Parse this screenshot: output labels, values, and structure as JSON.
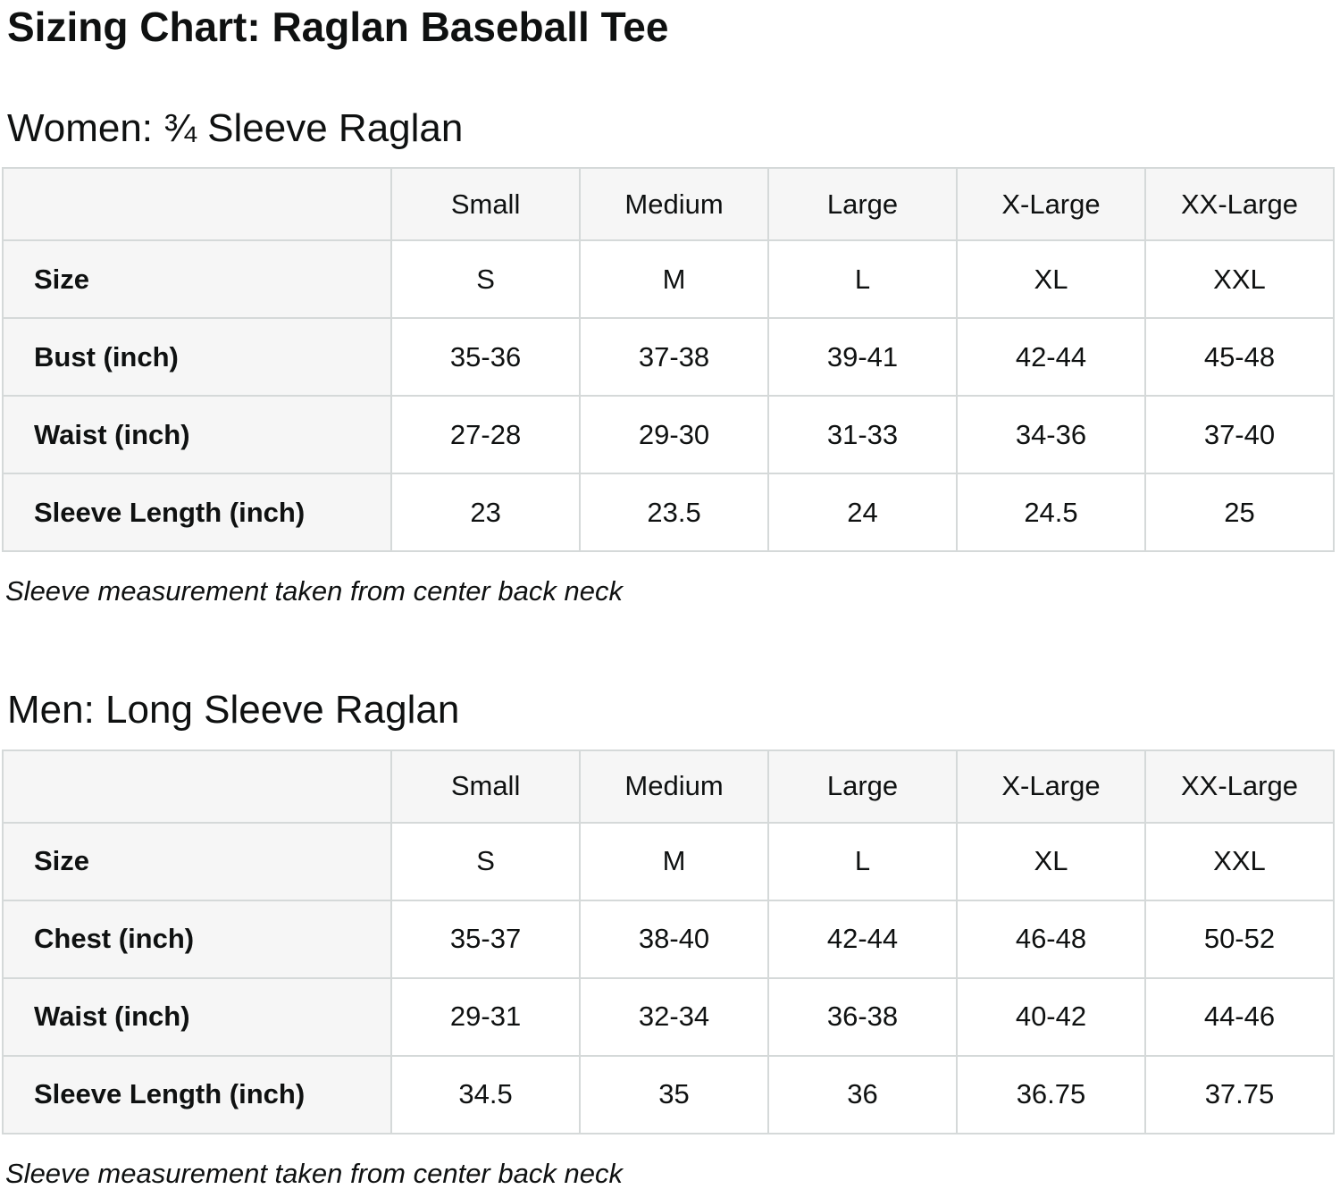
{
  "page": {
    "title": "Sizing Chart: Raglan Baseball Tee"
  },
  "sections": [
    {
      "heading": "Women: ¾ Sleeve Raglan",
      "note": "Sleeve measurement taken from center back neck",
      "table": {
        "column_headers": [
          "Small",
          "Medium",
          "Large",
          "X-Large",
          "XX-Large"
        ],
        "rows": [
          {
            "label": "Size",
            "values": [
              "S",
              "M",
              "L",
              "XL",
              "XXL"
            ]
          },
          {
            "label": "Bust (inch)",
            "values": [
              "35-36",
              "37-38",
              "39-41",
              "42-44",
              "45-48"
            ]
          },
          {
            "label": "Waist (inch)",
            "values": [
              "27-28",
              "29-30",
              "31-33",
              "34-36",
              "37-40"
            ]
          },
          {
            "label": "Sleeve Length (inch)",
            "values": [
              "23",
              "23.5",
              "24",
              "24.5",
              "25"
            ]
          }
        ]
      }
    },
    {
      "heading": "Men: Long Sleeve Raglan",
      "note": "Sleeve measurement taken from center back neck",
      "table": {
        "column_headers": [
          "Small",
          "Medium",
          "Large",
          "X-Large",
          "XX-Large"
        ],
        "rows": [
          {
            "label": "Size",
            "values": [
              "S",
              "M",
              "L",
              "XL",
              "XXL"
            ]
          },
          {
            "label": "Chest (inch)",
            "values": [
              "35-37",
              "38-40",
              "42-44",
              "46-48",
              "50-52"
            ]
          },
          {
            "label": "Waist (inch)",
            "values": [
              "29-31",
              "32-34",
              "36-38",
              "40-42",
              "44-46"
            ]
          },
          {
            "label": "Sleeve Length (inch)",
            "values": [
              "34.5",
              "35",
              "36",
              "36.75",
              "37.75"
            ]
          }
        ]
      }
    }
  ],
  "colors": {
    "text": "#0f1111",
    "table_border": "#d5d9d9",
    "header_cell_bg": "#f6f6f6",
    "data_cell_bg": "#ffffff"
  }
}
